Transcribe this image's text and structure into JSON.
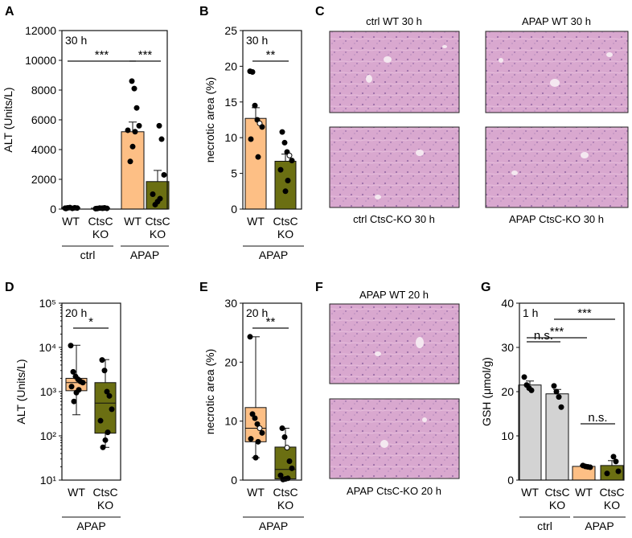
{
  "colors": {
    "wt_apap": "#FDBF85",
    "ko_apap": "#6B6F12",
    "ctrl_gray": "#D3D3D3",
    "tissue": "#D9A6CE",
    "tissue_dark": "#B98AB5",
    "axis": "#111111"
  },
  "panel_letters": [
    "A",
    "B",
    "C",
    "D",
    "E",
    "F",
    "G"
  ],
  "chart_data": [
    {
      "id": "A",
      "type": "bar",
      "annotation": "30 h",
      "ylabel": "ALT (Units/L)",
      "ylim": [
        0,
        12000
      ],
      "yticks": [
        0,
        2000,
        4000,
        6000,
        8000,
        10000,
        12000
      ],
      "categories": [
        "WT",
        "CtsC KO",
        "WT",
        "CtsC KO"
      ],
      "groups": [
        "ctrl",
        "APAP"
      ],
      "values": [
        80,
        60,
        5200,
        1850
      ],
      "errors": [
        30,
        25,
        650,
        750
      ],
      "points": [
        [
          60,
          80,
          100,
          50,
          90,
          70,
          40
        ],
        [
          40,
          70,
          60,
          80,
          50,
          30,
          60
        ],
        [
          8600,
          8100,
          6800,
          5600,
          5300,
          5200,
          4200,
          3200
        ],
        [
          5600,
          4700,
          2300,
          1000,
          700,
          500,
          300
        ]
      ],
      "significance": [
        {
          "label": "***",
          "from": 0,
          "to": 2
        },
        {
          "label": "***",
          "from": 2,
          "to": 3
        }
      ]
    },
    {
      "id": "B",
      "type": "bar",
      "annotation": "30 h",
      "ylabel": "necrotic area (%)",
      "ylim": [
        0,
        25
      ],
      "yticks": [
        0,
        5,
        10,
        15,
        20,
        25
      ],
      "categories": [
        "WT",
        "CtsC KO"
      ],
      "groups": [
        "APAP"
      ],
      "values": [
        12.7,
        6.7
      ],
      "errors": [
        1.5,
        1.0
      ],
      "points": [
        [
          19.3,
          19.2,
          14.5,
          12.5,
          12.0,
          11.5,
          9.8,
          7.3
        ],
        [
          10.8,
          9.3,
          8.0,
          7.5,
          6.8,
          5.5,
          4.0,
          2.5
        ]
      ],
      "significance": [
        {
          "label": "**",
          "from": 0,
          "to": 1
        }
      ]
    },
    {
      "id": "D",
      "type": "box",
      "annotation": "20 h",
      "scale": "log",
      "ylabel": "ALT (Units/L)",
      "ylim_log10": [
        1,
        5
      ],
      "ytick_labels": [
        "10¹",
        "10²",
        "10³",
        "10⁴",
        "10⁵"
      ],
      "categories": [
        "WT",
        "CtsC KO"
      ],
      "groups": [
        "APAP"
      ],
      "box_stats": [
        {
          "min": 300.0,
          "q1": 1050.0,
          "median": 1600.0,
          "q3": 2000.0,
          "max": 11200.0
        },
        {
          "min": 55,
          "q1": 115,
          "median": 550,
          "q3": 1600.0,
          "max": 5300.0
        }
      ],
      "points": [
        [
          11000,
          2800,
          2200,
          1900,
          1700,
          1600,
          1300,
          1100,
          950,
          600
        ],
        [
          5200,
          3000,
          1000,
          800,
          400,
          220,
          120,
          80,
          55
        ]
      ],
      "significance": [
        {
          "label": "*",
          "from": 0,
          "to": 1
        }
      ]
    },
    {
      "id": "E",
      "type": "box",
      "annotation": "20 h",
      "ylabel": "necrotic area (%)",
      "ylim": [
        0,
        30
      ],
      "yticks": [
        0,
        10,
        20,
        30
      ],
      "categories": [
        "WT",
        "CtsC KO"
      ],
      "groups": [
        "APAP"
      ],
      "box_stats": [
        {
          "min": 3.8,
          "q1": 6.5,
          "median": 8.8,
          "q3": 12.3,
          "max": 24.3
        },
        {
          "min": 0.1,
          "q1": 0.2,
          "median": 1.8,
          "q3": 5.6,
          "max": 8.8
        }
      ],
      "points": [
        [
          24.3,
          11.2,
          10.5,
          9.5,
          8.8,
          8.0,
          7.0,
          6.5,
          3.8
        ],
        [
          8.8,
          7.3,
          5.5,
          3.2,
          2.0,
          0.8,
          0.3,
          0.2,
          0.1
        ]
      ],
      "significance": [
        {
          "label": "**",
          "from": 0,
          "to": 1
        }
      ]
    },
    {
      "id": "G",
      "type": "bar",
      "annotation": "1 h",
      "ylabel": "GSH (μmol/g)",
      "ylim": [
        0,
        40
      ],
      "yticks": [
        0,
        10,
        20,
        30,
        40
      ],
      "categories": [
        "WT",
        "CtsC KO",
        "WT",
        "CtsC KO"
      ],
      "groups": [
        "ctrl",
        "APAP"
      ],
      "values": [
        21.5,
        19.5,
        3.1,
        3.3
      ],
      "errors": [
        0.9,
        1.0,
        0.2,
        1.1
      ],
      "points": [
        [
          23.3,
          21.5,
          20.8,
          20.3
        ],
        [
          21.3,
          20.0,
          18.8,
          16.5
        ],
        [
          3.3,
          3.1,
          3.0,
          2.9
        ],
        [
          5.3,
          4.2,
          2.0,
          1.5
        ]
      ],
      "fills": [
        "ctrl_gray",
        "ctrl_gray",
        "wt_apap",
        "ko_apap"
      ],
      "significance": [
        {
          "label": "n.s.",
          "from": 0,
          "to": 1
        },
        {
          "label": "***",
          "from": 0,
          "to": 2
        },
        {
          "label": "***",
          "from": 1,
          "to": 3
        },
        {
          "label": "n.s.",
          "from": 2,
          "to": 3
        }
      ]
    }
  ],
  "histology_panels": [
    {
      "id": "C1",
      "caption": "ctrl WT 30 h"
    },
    {
      "id": "C2",
      "caption": "APAP WT 30 h"
    },
    {
      "id": "C3",
      "caption": "ctrl CtsC-KO 30 h"
    },
    {
      "id": "C4",
      "caption": "APAP CtsC-KO 30 h"
    },
    {
      "id": "F1",
      "caption": "APAP WT 20 h"
    },
    {
      "id": "F2",
      "caption": "APAP CtsC-KO 20 h"
    }
  ]
}
